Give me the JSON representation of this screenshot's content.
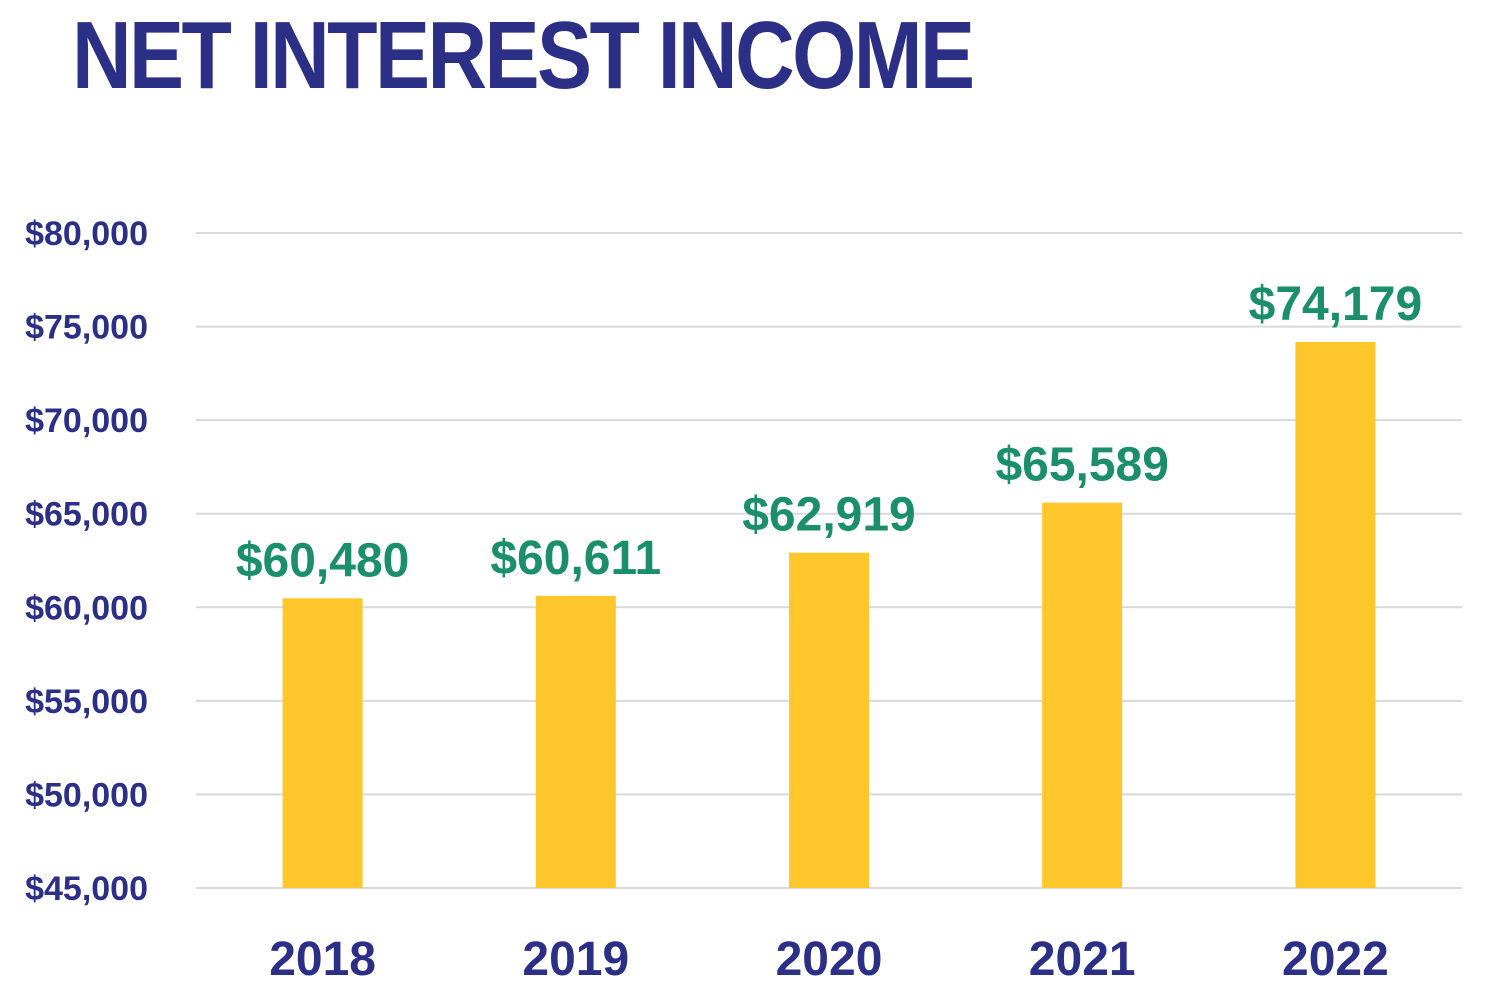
{
  "chart_data": {
    "type": "bar",
    "title": "NET INTEREST INCOME",
    "categories": [
      "2018",
      "2019",
      "2020",
      "2021",
      "2022"
    ],
    "values": [
      60480,
      60611,
      62919,
      65589,
      74179
    ],
    "data_labels": [
      "$60,480",
      "$60,611",
      "$62,919",
      "$65,589",
      "$74,179"
    ],
    "ylim": [
      45000,
      80000
    ],
    "yticks": [
      45000,
      50000,
      55000,
      60000,
      65000,
      70000,
      75000,
      80000
    ],
    "ytick_labels": [
      "$45,000",
      "$50,000",
      "$55,000",
      "$60,000",
      "$65,000",
      "$70,000",
      "$75,000",
      "$80,000"
    ],
    "grid": true,
    "legend": "none",
    "xlabel": "",
    "ylabel": "",
    "colors": {
      "bar": "#FFC72C",
      "title": "#2B2F85",
      "axis_text": "#2B2F85",
      "data_label": "#1A8F6A",
      "grid": "#D9D9D9"
    }
  }
}
